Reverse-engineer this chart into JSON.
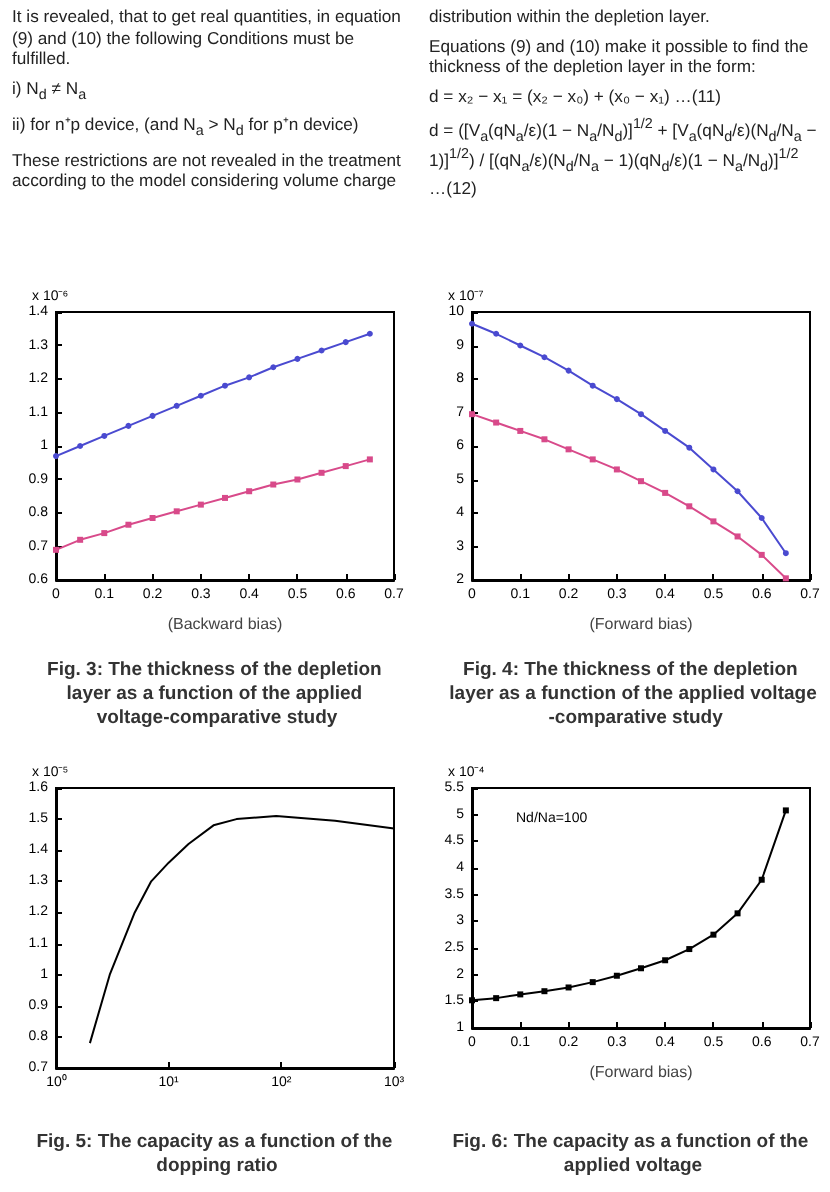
{
  "chart_data": [
    {
      "type": "other",
      "annotations": [
        "It is revealed, that to get real quantities, in equation (9) and (10) the following Conditions must be fulfilled.",
        "i) N$_{d}$ ≠ N$_{a}$",
        "ii) for n⁺p device, (and N$_{a}$ > N$_{d}$ for p⁺n device)",
        "These restrictions are not revealed in the treatment according to the model considering volume charge distribution within the depletion layer.",
        "Equations (9) and (10) make it possible to find the thickness of the depletion layer in the form:",
        "d = x₂ − x₁ = (x₂ − x₀) + (x₀ − x₁)   …(11)",
        "d = ([V$_{a}$(qN$_{a}$/ε)(1 − N$_{a}$/N$_{d}$)]$^{1/2}$ + [V$_{a}$(qN$_{d}$/ε)(N$_{d}$/N$_{a}$ − 1)]$^{1/2}$) / [(qN$_{a}$/ε)(N$_{d}$/N$_{a}$ − 1)(qN$_{d}$/ε)(1 − N$_{a}$/N$_{d}$)]$^{1/2}$   …(12)"
      ]
    },
    {
      "type": "line",
      "title": "Fig. 3: The thickness of the depletion layer as a function of the applied voltage-comparative study",
      "xlabel": "(Backward bias)",
      "ylabel": "x 10⁻⁶",
      "x": [
        0,
        0.05,
        0.1,
        0.15,
        0.2,
        0.25,
        0.3,
        0.35,
        0.4,
        0.45,
        0.5,
        0.55,
        0.6,
        0.65
      ],
      "xlim": [
        0,
        0.7
      ],
      "xticks": [
        0,
        0.1,
        0.2,
        0.3,
        0.4,
        0.5,
        0.6,
        0.7
      ],
      "ylim": [
        0.6,
        1.4
      ],
      "yticks": [
        0.6,
        0.7,
        0.8,
        0.9,
        1,
        1.1,
        1.2,
        1.3,
        1.4
      ],
      "grid": false,
      "series": [
        {
          "color": "#4a4ad0",
          "marker": "circle",
          "values": [
            0.97,
            1.0,
            1.03,
            1.06,
            1.09,
            1.12,
            1.15,
            1.18,
            1.205,
            1.235,
            1.26,
            1.285,
            1.31,
            1.335
          ]
        },
        {
          "color": "#d84a8a",
          "marker": "square",
          "values": [
            0.69,
            0.72,
            0.74,
            0.765,
            0.785,
            0.805,
            0.825,
            0.845,
            0.865,
            0.885,
            0.9,
            0.92,
            0.94,
            0.96
          ]
        }
      ]
    },
    {
      "type": "line",
      "title": "Fig. 4: The thickness of the depletion layer as a function of the applied voltage -comparative study",
      "xlabel": "(Forward bias)",
      "ylabel": "x 10⁻⁷",
      "x": [
        0,
        0.05,
        0.1,
        0.15,
        0.2,
        0.25,
        0.3,
        0.35,
        0.4,
        0.45,
        0.5,
        0.55,
        0.6,
        0.65
      ],
      "xlim": [
        0,
        0.7
      ],
      "xticks": [
        0,
        0.1,
        0.2,
        0.3,
        0.4,
        0.5,
        0.6,
        0.7
      ],
      "ylim": [
        2,
        10
      ],
      "yticks": [
        2,
        3,
        4,
        5,
        6,
        7,
        8,
        9,
        10
      ],
      "grid": false,
      "series": [
        {
          "color": "#4a4ad0",
          "marker": "circle",
          "values": [
            9.65,
            9.35,
            9.0,
            8.65,
            8.25,
            7.8,
            7.4,
            6.95,
            6.45,
            5.95,
            5.3,
            4.65,
            3.85,
            2.8
          ]
        },
        {
          "color": "#d84a8a",
          "marker": "square",
          "values": [
            6.95,
            6.7,
            6.45,
            6.2,
            5.9,
            5.6,
            5.3,
            4.95,
            4.6,
            4.2,
            3.75,
            3.3,
            2.75,
            2.05
          ]
        }
      ]
    },
    {
      "type": "line",
      "title": "Fig. 5: The capacity as a function of the dopping ratio",
      "ylabel": "x 10⁻⁵",
      "log": "x",
      "x": [
        2,
        3,
        5,
        7,
        10,
        15,
        25,
        40,
        90,
        300,
        1000
      ],
      "xlim": [
        1,
        1000
      ],
      "xticks": [
        {
          "value": 1,
          "label": "10⁰"
        },
        {
          "value": 10,
          "label": "10¹"
        },
        {
          "value": 100,
          "label": "10²"
        },
        {
          "value": 1000,
          "label": "10³"
        }
      ],
      "ylim": [
        0.7,
        1.6
      ],
      "yticks": [
        0.7,
        0.8,
        0.9,
        1,
        1.1,
        1.2,
        1.3,
        1.4,
        1.5,
        1.6
      ],
      "grid": false,
      "series": [
        {
          "color": "#000000",
          "marker": "none",
          "values": [
            0.78,
            1.0,
            1.2,
            1.3,
            1.36,
            1.42,
            1.48,
            1.5,
            1.51,
            1.495,
            1.47
          ]
        }
      ]
    },
    {
      "type": "line",
      "title": "Fig. 6: The capacity as a function of the applied voltage",
      "xlabel": "(Forward bias)",
      "ylabel": "x 10⁻⁴",
      "annotations": [
        "Nd/Na=100"
      ],
      "x": [
        0,
        0.05,
        0.1,
        0.15,
        0.2,
        0.25,
        0.3,
        0.35,
        0.4,
        0.45,
        0.5,
        0.55,
        0.6,
        0.65
      ],
      "xlim": [
        0,
        0.7
      ],
      "xticks": [
        0,
        0.1,
        0.2,
        0.3,
        0.4,
        0.5,
        0.6,
        0.7
      ],
      "ylim": [
        1,
        5.5
      ],
      "yticks": [
        1,
        1.5,
        2,
        2.5,
        3,
        3.5,
        4,
        4.5,
        5,
        5.5
      ],
      "grid": false,
      "series": [
        {
          "color": "#000000",
          "marker": "square",
          "values": [
            1.52,
            1.56,
            1.63,
            1.69,
            1.76,
            1.86,
            1.98,
            2.12,
            2.27,
            2.48,
            2.75,
            3.15,
            3.78,
            5.08
          ]
        }
      ]
    }
  ]
}
